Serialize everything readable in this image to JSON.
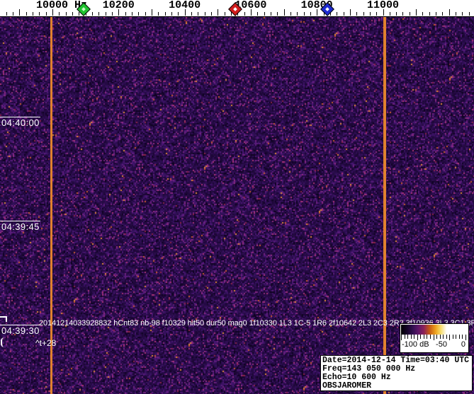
{
  "ruler": {
    "unit": "Hz",
    "labels": [
      {
        "text": "10000 Hz",
        "freq": 10000
      },
      {
        "text": "10200",
        "freq": 10200
      },
      {
        "text": "10400",
        "freq": 10400
      },
      {
        "text": "10600",
        "freq": 10600
      },
      {
        "text": "10800",
        "freq": 10800
      },
      {
        "text": "11000",
        "freq": 11000
      }
    ],
    "tick_minor_step_hz": 20,
    "tick_major_step_hz": 100,
    "markers": [
      {
        "id": "green",
        "freq": 10095,
        "color": "#1fc22f",
        "inner": "#c8ffc8"
      },
      {
        "id": "red",
        "freq": 10553,
        "color": "#d01d1d",
        "inner": "#ffffff"
      },
      {
        "id": "blue",
        "freq": 10832,
        "color": "#1d2ad0",
        "inner": "#ffffff"
      }
    ]
  },
  "waterfall": {
    "timestamps": [
      "04:40:00",
      "04:39:45",
      "04:39:30"
    ],
    "event_text": "20141214033928832 hCnt83 nb-98 f10329 hit50 dur50 mag0 1f10330 1L3 1C-5 1R6 2f10642 2L3 2C3 2R2 3f10936 3L3 3C1 3R5",
    "cursor_label": "^t+28",
    "band_line_color": "#e0812e",
    "noise_palette": [
      {
        "c": "#1c0736",
        "w": 20
      },
      {
        "c": "#250a44",
        "w": 22
      },
      {
        "c": "#2e0e52",
        "w": 18
      },
      {
        "c": "#3a1263",
        "w": 12
      },
      {
        "c": "#0f0322",
        "w": 8
      },
      {
        "c": "#4a1773",
        "w": 7
      },
      {
        "c": "#5c1c7c",
        "w": 5
      },
      {
        "c": "#732381",
        "w": 3.5
      },
      {
        "c": "#8f2b82",
        "w": 2.2
      },
      {
        "c": "#a93378",
        "w": 1.2
      },
      {
        "c": "#8a2348",
        "w": 0.6
      },
      {
        "c": "#c75b2c",
        "w": 0.3
      },
      {
        "c": "#e08a38",
        "w": 0.2
      }
    ]
  },
  "colorbar": {
    "labels": {
      "min": "-100 dB",
      "mid": "-50",
      "max": "0"
    },
    "gradient": [
      "#000000",
      "#140327",
      "#321050",
      "#5a1668",
      "#8c2158",
      "#c65a14",
      "#eda21e",
      "#f7dc6a",
      "#ffffff"
    ]
  },
  "info": {
    "lines": [
      "Date=2014-12-14 Time=03:40 UTC",
      "Freq=143 050 000 Hz",
      "Echo=10 600 Hz",
      "OBSJAROMER"
    ]
  }
}
